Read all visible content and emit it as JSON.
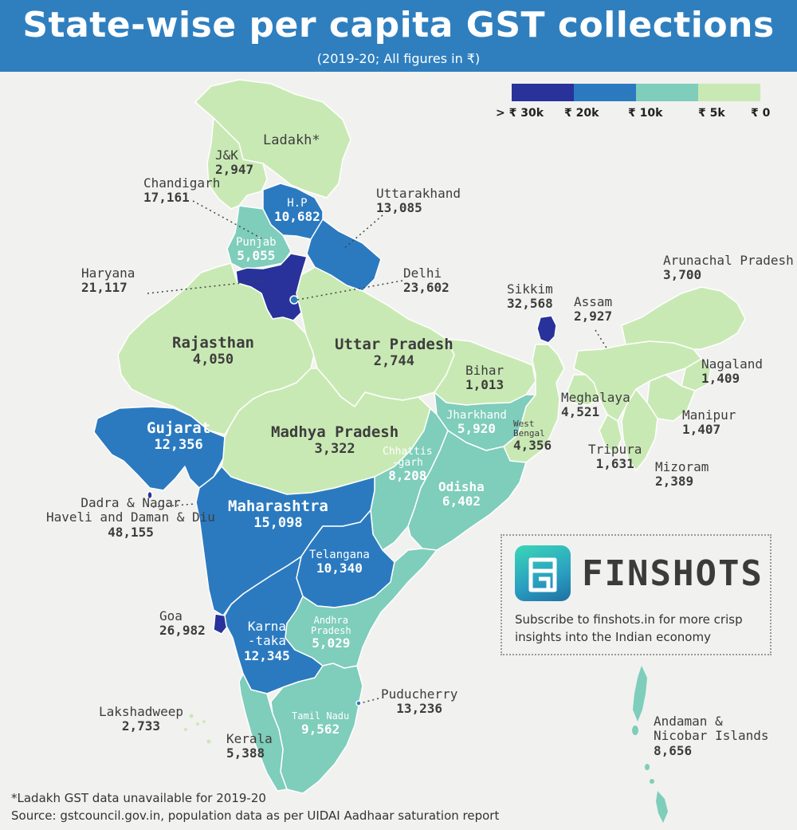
{
  "header": {
    "title": "State-wise per capita GST collections",
    "subtitle": "(2019-20; All figures in ₹)"
  },
  "legend": {
    "items": [
      {
        "label": "> ₹ 30k",
        "color": "#28329a"
      },
      {
        "label": "₹ 20k",
        "color": "#2b7ac0"
      },
      {
        "label": "₹ 10k",
        "color": "#7fcdbb"
      },
      {
        "label": "₹ 5k",
        "color": "#c9e9b4"
      },
      {
        "label": "₹ 0",
        "color": "#c9e9b4"
      }
    ]
  },
  "colors": {
    "header_bg": "#2f7fbf",
    "band_30k": "#28329a",
    "band_20k": "#2b7ac0",
    "band_10k": "#7fcdbb",
    "band_5k": "#c9e9b4"
  },
  "regions": {
    "ladakh": {
      "name": "Ladakh*",
      "value": ""
    },
    "jk": {
      "name": "J&K",
      "value": "2,947"
    },
    "hp": {
      "name": "H.P",
      "value": "10,682"
    },
    "chandigarh": {
      "name": "Chandigarh",
      "value": "17,161"
    },
    "uttarakhand": {
      "name": "Uttarakhand",
      "value": "13,085"
    },
    "punjab": {
      "name": "Punjab",
      "value": "5,055"
    },
    "haryana": {
      "name": "Haryana",
      "value": "21,117"
    },
    "delhi": {
      "name": "Delhi",
      "value": "23,602"
    },
    "rajasthan": {
      "name": "Rajasthan",
      "value": "4,050"
    },
    "up": {
      "name": "Uttar Pradesh",
      "value": "2,744"
    },
    "sikkim": {
      "name": "Sikkim",
      "value": "32,568"
    },
    "assam": {
      "name": "Assam",
      "value": "2,927"
    },
    "arunachal": {
      "name": "Arunachal Pradesh",
      "value": "3,700"
    },
    "bihar": {
      "name": "Bihar",
      "value": "1,013"
    },
    "nagaland": {
      "name": "Nagaland",
      "value": "1,409"
    },
    "meghalaya": {
      "name": "Meghalaya",
      "value": "4,521"
    },
    "manipur": {
      "name": "Manipur",
      "value": "1,407"
    },
    "gujarat": {
      "name": "Gujarat",
      "value": "12,356"
    },
    "jharkhand": {
      "name": "Jharkhand",
      "value": "5,920"
    },
    "wb": {
      "name1": "West",
      "name2": "Bengal",
      "value": "4,356"
    },
    "mp": {
      "name": "Madhya Pradesh",
      "value": "3,322"
    },
    "tripura": {
      "name": "Tripura",
      "value": "1,631"
    },
    "mizoram": {
      "name": "Mizoram",
      "value": "2,389"
    },
    "chhattisgarh": {
      "name1": "Chhattis",
      "name2": "-garh",
      "value": "8,208"
    },
    "odisha": {
      "name": "Odisha",
      "value": "6,402"
    },
    "dnh": {
      "name1": "Dadra & Nagar",
      "name2": "Haveli and Daman & Diu",
      "value": "48,155"
    },
    "maharashtra": {
      "name": "Maharashtra",
      "value": "15,098"
    },
    "telangana": {
      "name": "Telangana",
      "value": "10,340"
    },
    "goa": {
      "name": "Goa",
      "value": "26,982"
    },
    "karnataka": {
      "name1": "Karna",
      "name2": "-taka",
      "value": "12,345"
    },
    "ap": {
      "name1": "Andhra",
      "name2": "Pradesh",
      "value": "5,029"
    },
    "lakshadweep": {
      "name": "Lakshadweep",
      "value": "2,733"
    },
    "puducherry": {
      "name": "Puducherry",
      "value": "13,236"
    },
    "tamilnadu": {
      "name": "Tamil Nadu",
      "value": "9,562"
    },
    "andaman": {
      "name1": "Andaman &",
      "name2": "Nicobar Islands",
      "value": "8,656"
    },
    "kerala": {
      "name": "Kerala",
      "value": "5,388"
    }
  },
  "promo": {
    "brand": "FINSHOTS",
    "logo_icon": "finshots-logo-icon",
    "text": "Subscribe to finshots.in for more crisp insights into the Indian economy"
  },
  "footnote": {
    "note": "*Ladakh GST data unavailable for 2019-20",
    "source": "Source: gstcouncil.gov.in, population data as per UIDAI Aadhaar saturation report"
  }
}
